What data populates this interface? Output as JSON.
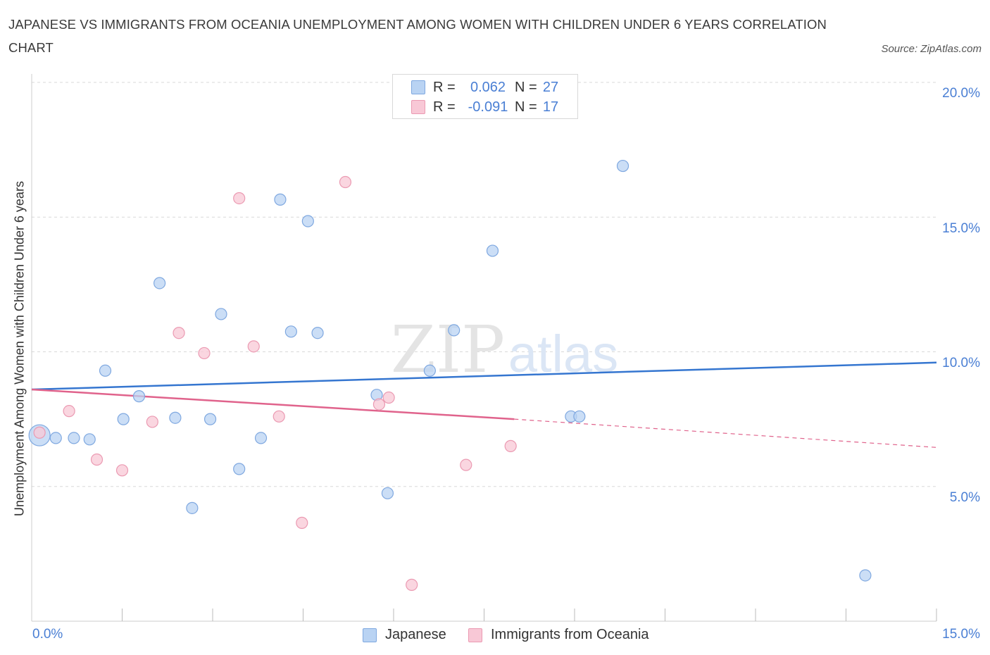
{
  "title": "JAPANESE VS IMMIGRANTS FROM OCEANIA UNEMPLOYMENT AMONG WOMEN WITH CHILDREN UNDER 6 YEARS CORRELATION CHART",
  "source": "Source: ZipAtlas.com",
  "watermark": {
    "zip": "ZIP",
    "atlas": "atlas"
  },
  "legend_stats": [
    {
      "r_label": "R =",
      "r_value": "0.062",
      "n_label": "N =",
      "n_value": "27",
      "color": "#a9c8f2"
    },
    {
      "r_label": "R =",
      "r_value": "-0.091",
      "n_label": "N =",
      "n_value": "17",
      "color": "#f5b8c8"
    }
  ],
  "colors": {
    "japanese_fill": "#b9d3f3",
    "japanese_stroke": "#7fa8e0",
    "japanese_line": "#3576d0",
    "oceania_fill": "#f8c8d6",
    "oceania_stroke": "#eb9ab2",
    "oceania_line": "#e0638c",
    "grid": "#d9d9d9",
    "tick_label": "#4a7fd4"
  },
  "chart_data": {
    "type": "scatter",
    "title": "JAPANESE VS IMMIGRANTS FROM OCEANIA UNEMPLOYMENT AMONG WOMEN WITH CHILDREN UNDER 6 YEARS CORRELATION CHART",
    "xlabel": "",
    "ylabel": "Unemployment Among Women with Children Under 6 years",
    "xlim": [
      0,
      15
    ],
    "ylim": [
      0,
      20
    ],
    "x_tick_labels": [
      "0.0%",
      "15.0%"
    ],
    "y_tick_labels": [
      "5.0%",
      "10.0%",
      "15.0%",
      "20.0%"
    ],
    "y_ticks": [
      5,
      10,
      15,
      20
    ],
    "grid": true,
    "legend_position": "bottom",
    "series": [
      {
        "name": "Japanese",
        "points": [
          [
            0.13,
            6.9
          ],
          [
            0.4,
            6.8
          ],
          [
            0.7,
            6.8
          ],
          [
            0.96,
            6.75
          ],
          [
            1.22,
            9.3
          ],
          [
            1.52,
            7.5
          ],
          [
            1.78,
            8.35
          ],
          [
            2.12,
            12.55
          ],
          [
            2.38,
            7.55
          ],
          [
            2.66,
            4.2
          ],
          [
            2.96,
            7.5
          ],
          [
            3.14,
            11.4
          ],
          [
            3.44,
            5.65
          ],
          [
            3.8,
            6.8
          ],
          [
            4.12,
            15.65
          ],
          [
            4.3,
            10.75
          ],
          [
            4.58,
            14.85
          ],
          [
            4.74,
            10.7
          ],
          [
            5.72,
            8.4
          ],
          [
            5.9,
            4.75
          ],
          [
            6.6,
            9.3
          ],
          [
            7.0,
            10.8
          ],
          [
            7.64,
            13.75
          ],
          [
            8.94,
            7.6
          ],
          [
            9.08,
            7.6
          ],
          [
            9.8,
            16.9
          ],
          [
            13.82,
            1.7
          ]
        ],
        "trend": {
          "x": [
            0,
            15
          ],
          "y": [
            8.6,
            9.6
          ]
        }
      },
      {
        "name": "Immigrants from Oceania",
        "points": [
          [
            0.13,
            7.0
          ],
          [
            0.62,
            7.8
          ],
          [
            1.08,
            6.0
          ],
          [
            1.5,
            5.6
          ],
          [
            2.0,
            7.4
          ],
          [
            2.44,
            10.7
          ],
          [
            2.86,
            9.95
          ],
          [
            3.44,
            15.7
          ],
          [
            3.68,
            10.2
          ],
          [
            4.1,
            7.6
          ],
          [
            4.48,
            3.65
          ],
          [
            5.2,
            16.3
          ],
          [
            5.76,
            8.05
          ],
          [
            5.92,
            8.3
          ],
          [
            6.3,
            1.35
          ],
          [
            7.2,
            5.8
          ],
          [
            7.94,
            6.5
          ]
        ],
        "trend": {
          "x": [
            0,
            8.0
          ],
          "y": [
            8.6,
            7.5
          ]
        },
        "trend_extension": {
          "x": [
            8.0,
            15
          ],
          "y": [
            7.5,
            6.45
          ]
        }
      }
    ]
  },
  "bottom_legend": [
    {
      "label": "Japanese"
    },
    {
      "label": "Immigrants from Oceania"
    }
  ]
}
